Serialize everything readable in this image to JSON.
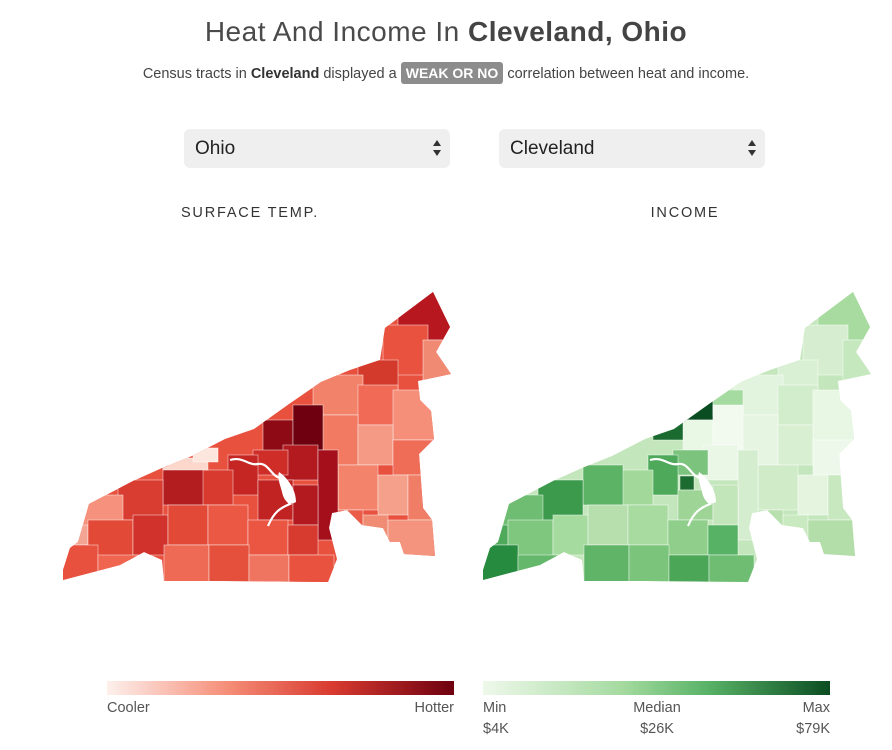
{
  "title": {
    "prefix": "Heat And Income In ",
    "place": "Cleveland, Ohio"
  },
  "subtitle": {
    "part1": "Census tracts in ",
    "city": "Cleveland",
    "part2": " displayed a ",
    "badge": "WEAK OR NO",
    "part3": " correlation between heat and income."
  },
  "selects": {
    "state": "Ohio",
    "city": "Cleveland"
  },
  "panels": {
    "left": "SURFACE TEMP.",
    "right": "INCOME"
  },
  "legend_heat": {
    "low": "Cooler",
    "high": "Hotter",
    "colors": [
      "#fdf0ec",
      "#f06a55",
      "#cf2d28",
      "#6e0010"
    ]
  },
  "legend_income": {
    "min_label": "Min",
    "median_label": "Median",
    "max_label": "Max",
    "min_value": "$4K",
    "median_value": "$26K",
    "max_value": "$79K",
    "colors": [
      "#eef8ea",
      "#a5dba0",
      "#58b266",
      "#0b4d22"
    ]
  },
  "colors": {
    "badge": "#8c8c8c",
    "select_bg": "#efefef"
  }
}
